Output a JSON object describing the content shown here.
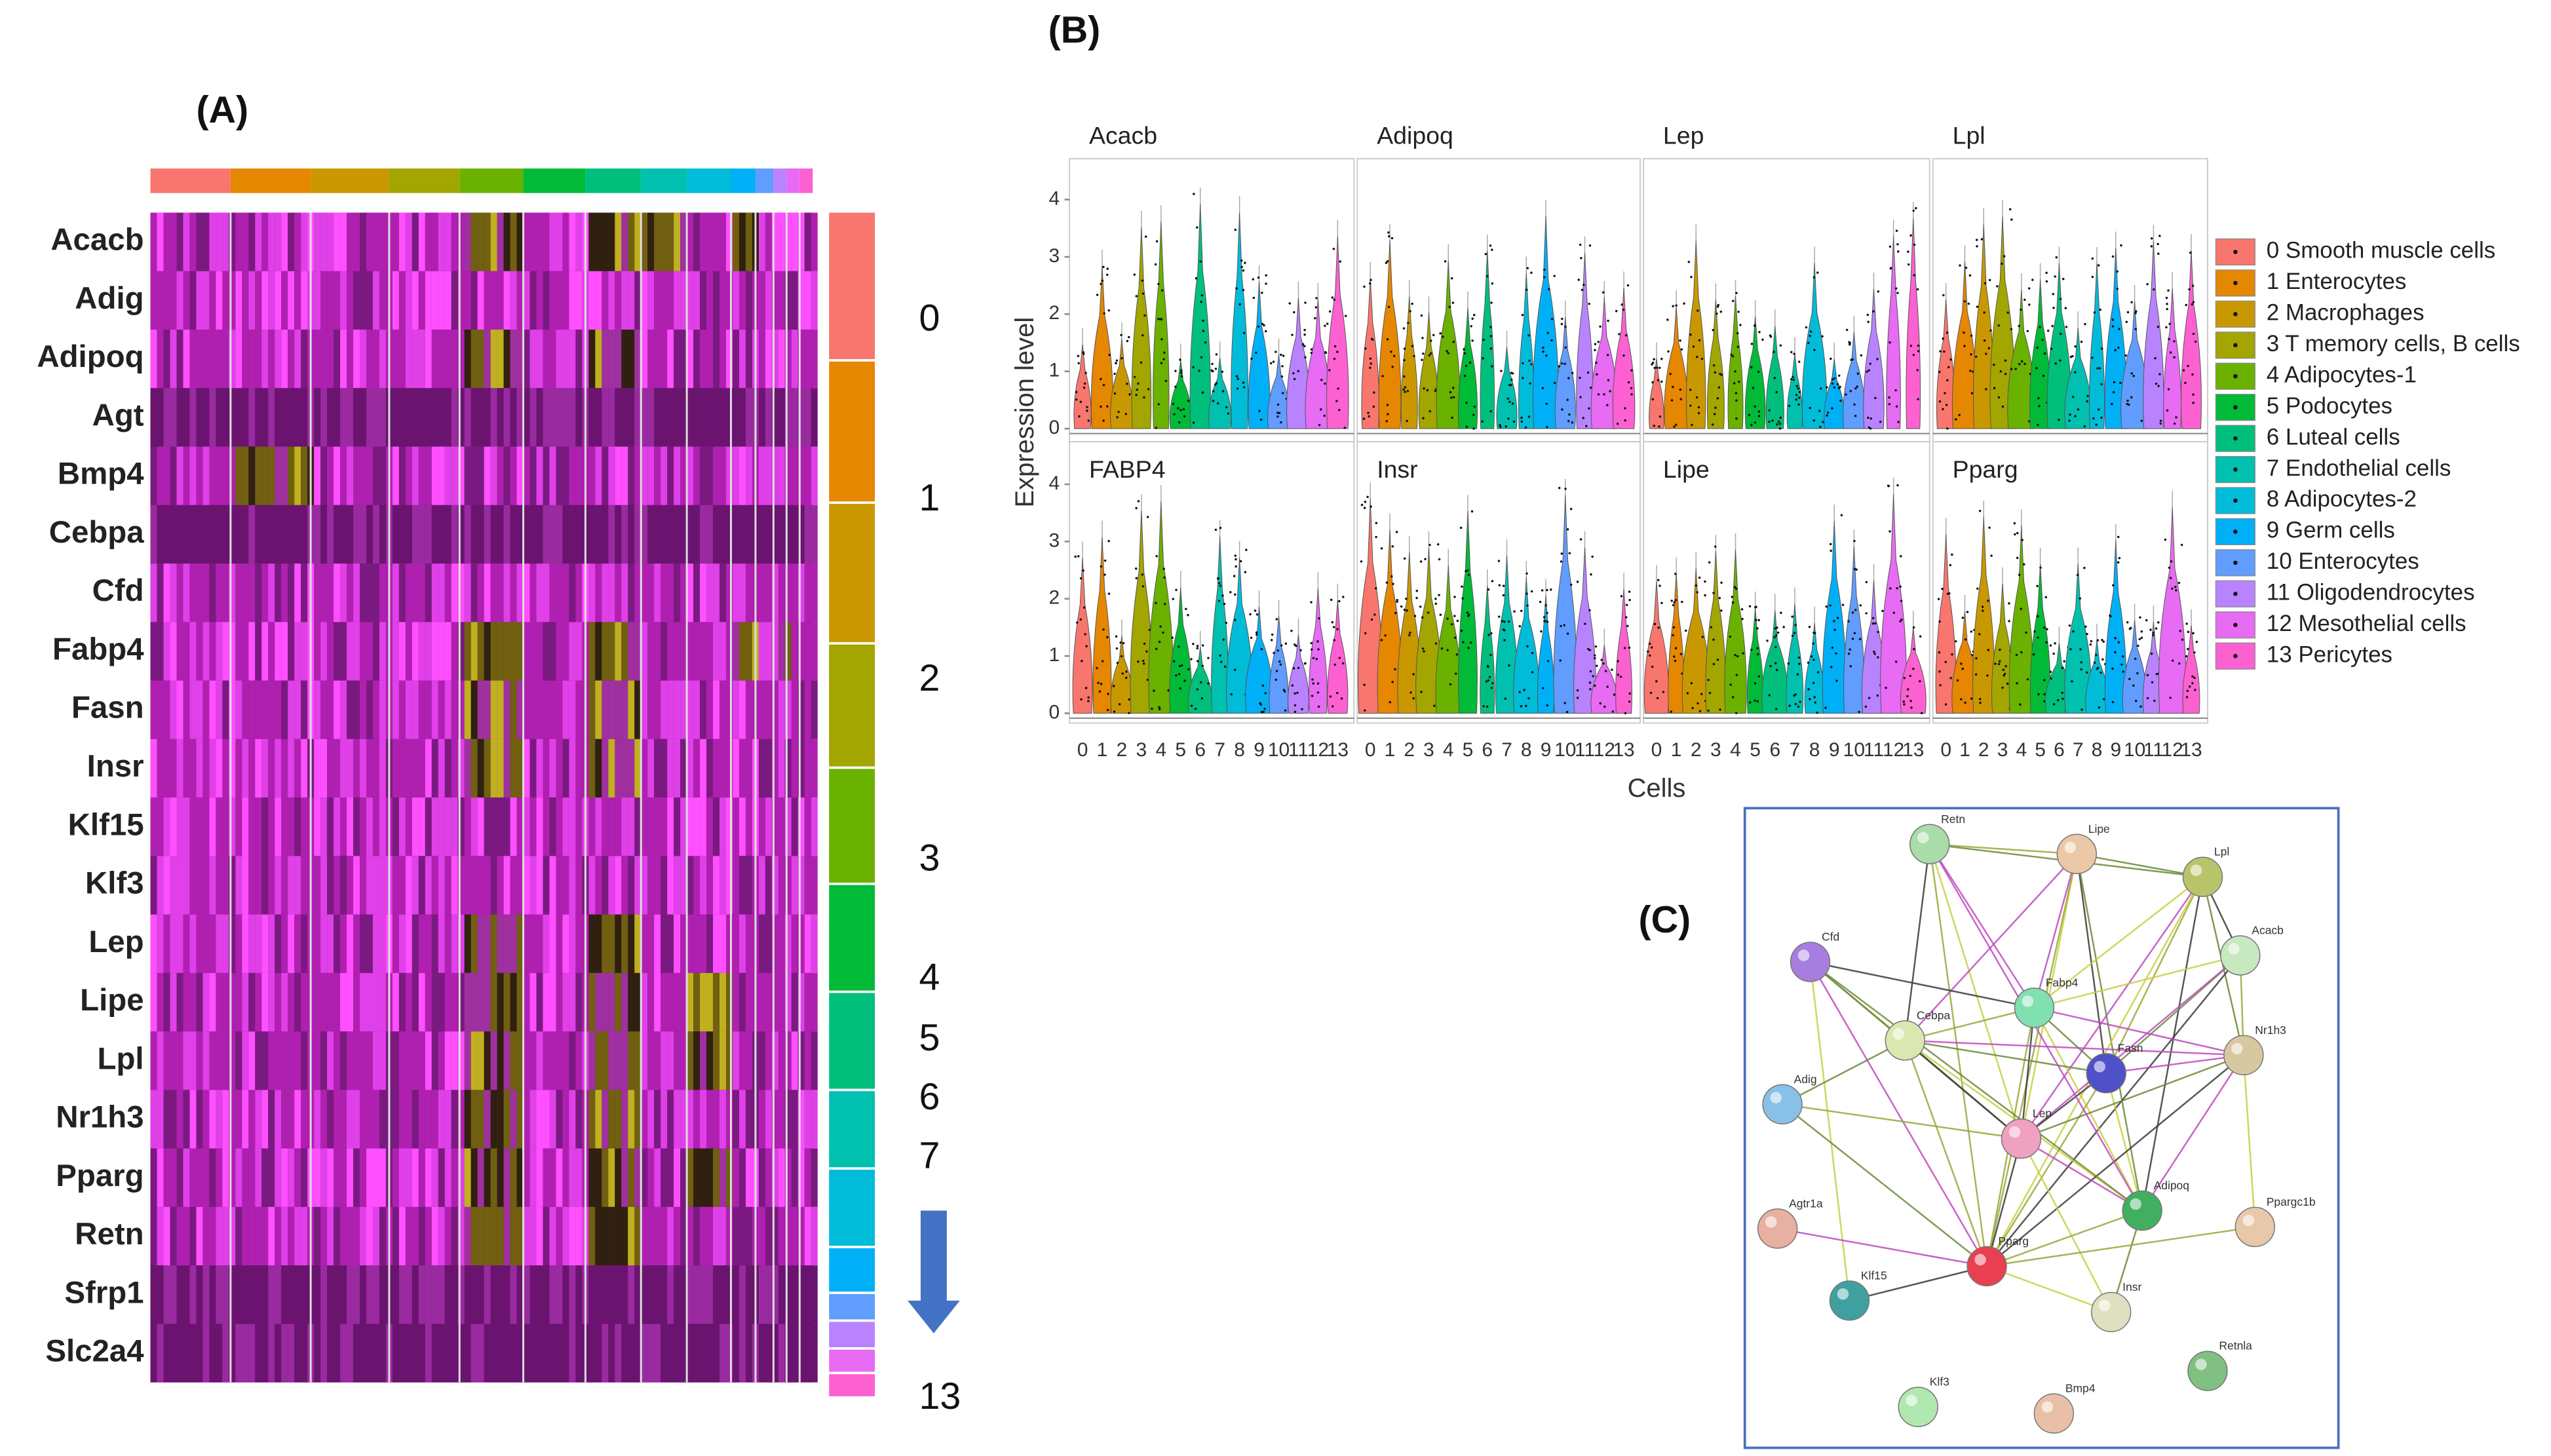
{
  "panel_a": {
    "label": "(A)",
    "genes": [
      "Acacb",
      "Adig",
      "Adipoq",
      "Agt",
      "Bmp4",
      "Cebpa",
      "Cfd",
      "Fabp4",
      "Fasn",
      "Insr",
      "Klf15",
      "Klf3",
      "Lep",
      "Lipe",
      "Lpl",
      "Nr1h3",
      "Pparg",
      "Retn",
      "Sfrp1",
      "Slc2a4"
    ],
    "cluster_labels": [
      "0",
      "1",
      "2",
      "3",
      "4",
      "5",
      "6",
      "7",
      "13"
    ]
  },
  "panel_b": {
    "label": "(B)",
    "y_axis_label": "Expression level",
    "x_axis_label": "Cells",
    "facets": [
      "Acacb",
      "Adipoq",
      "Lep",
      "Lpl",
      "FABP4",
      "Insr",
      "Lipe",
      "Pparg"
    ],
    "yticks": [
      0,
      1,
      2,
      3,
      4
    ],
    "xticks": [
      "0",
      "1",
      "2",
      "3",
      "4",
      "5",
      "6",
      "7",
      "8",
      "9",
      "10",
      "11",
      "12",
      "13"
    ],
    "legend": [
      "0 Smooth muscle cells",
      "1 Enterocytes",
      "2 Macrophages",
      "3 T memory cells, B cells",
      "4 Adipocytes-1",
      "5 Podocytes",
      "6 Luteal cells",
      "7 Endothelial cells",
      "8 Adipocytes-2",
      "9 Germ cells",
      "10 Enterocytes",
      "11 Oligodendrocytes",
      "12 Mesothelial cells",
      "13  Pericytes"
    ],
    "colors": [
      "#f8766d",
      "#e58700",
      "#c99800",
      "#a3a500",
      "#6bb100",
      "#00ba38",
      "#00bf7d",
      "#00c0af",
      "#00bcd8",
      "#00b0f6",
      "#619cff",
      "#b983ff",
      "#e76bf3",
      "#fd61d1"
    ]
  },
  "panel_c": {
    "label": "(C)",
    "nodes": [
      {
        "label": "Retn",
        "color": "#a8dca8"
      },
      {
        "label": "Lipe",
        "color": "#ecc8a8"
      },
      {
        "label": "Lpl",
        "color": "#b8c46a"
      },
      {
        "label": "Acacb",
        "color": "#c8e8c0"
      },
      {
        "label": "Cfd",
        "color": "#a77ee0"
      },
      {
        "label": "Fabp4",
        "color": "#80e0b0"
      },
      {
        "label": "Cebpa",
        "color": "#d8e8b0"
      },
      {
        "label": "Fasn",
        "color": "#5050c8"
      },
      {
        "label": "Nr1h3",
        "color": "#d8c8a0"
      },
      {
        "label": "Adig",
        "color": "#88c0e8"
      },
      {
        "label": "Lep",
        "color": "#f0a0c0"
      },
      {
        "label": "Adipoq",
        "color": "#40b060"
      },
      {
        "label": "Ppargc1b",
        "color": "#e8c8a8"
      },
      {
        "label": "Agtr1a",
        "color": "#e8b0a0"
      },
      {
        "label": "Pparg",
        "color": "#e84050"
      },
      {
        "label": "Klf15",
        "color": "#40a0a0"
      },
      {
        "label": "Insr",
        "color": "#e0e0c0"
      },
      {
        "label": "Retnla",
        "color": "#80c080"
      },
      {
        "label": "Klf3",
        "color": "#b0e8b0"
      },
      {
        "label": "Bmp4",
        "color": "#e8c0a8"
      }
    ]
  }
}
